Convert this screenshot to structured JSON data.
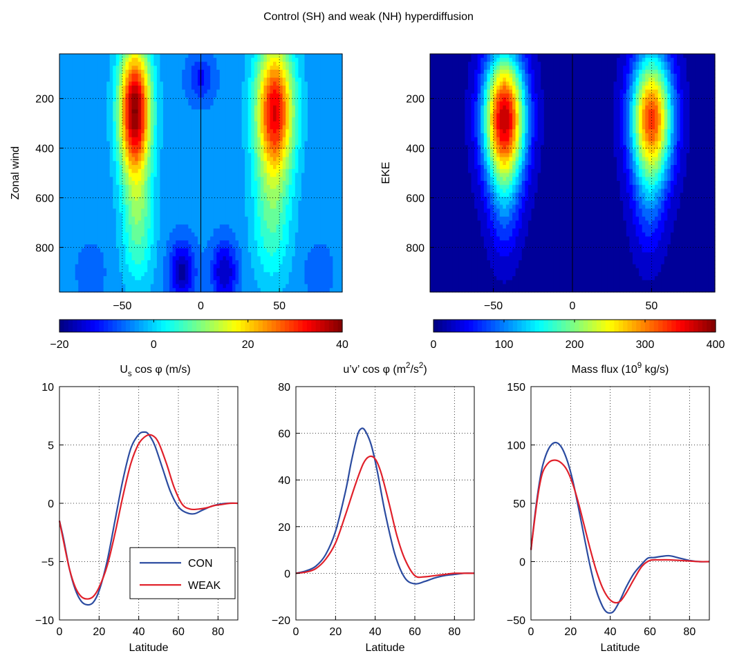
{
  "figure": {
    "title": "Control (SH) and weak (NH) hyperdiffusion"
  },
  "chart_data": [
    {
      "type": "heatmap",
      "id": "zonal-wind",
      "ylabel": "Zonal wind",
      "x_ticks": [
        -50,
        0,
        50
      ],
      "y_ticks": [
        200,
        400,
        600,
        800
      ],
      "xlim": [
        -90,
        90
      ],
      "ylim": [
        980,
        20
      ],
      "colorbar": {
        "label_parts": [
          "U",
          "s",
          " cos φ (m/s)"
        ],
        "range": [
          -20,
          40
        ],
        "ticks": [
          -20,
          0,
          20,
          40
        ]
      },
      "background_value": -4,
      "features": [
        {
          "lat": -42,
          "p": 250,
          "amp": 44,
          "slat": 10,
          "sp": 260
        },
        {
          "lat": 47,
          "p": 250,
          "amp": 38,
          "slat": 12,
          "sp": 270
        },
        {
          "lat": -40,
          "p": 700,
          "amp": 12,
          "slat": 10,
          "sp": 250
        },
        {
          "lat": 45,
          "p": 700,
          "amp": 10,
          "slat": 12,
          "sp": 250
        },
        {
          "lat": -12,
          "p": 900,
          "amp": -14,
          "slat": 8,
          "sp": 120
        },
        {
          "lat": 15,
          "p": 900,
          "amp": -13,
          "slat": 8,
          "sp": 120
        },
        {
          "lat": 0,
          "p": 120,
          "amp": -8,
          "slat": 8,
          "sp": 90
        },
        {
          "lat": -70,
          "p": 900,
          "amp": -4,
          "slat": 8,
          "sp": 100
        },
        {
          "lat": 75,
          "p": 900,
          "amp": -4,
          "slat": 8,
          "sp": 100
        }
      ]
    },
    {
      "type": "heatmap",
      "id": "eke",
      "ylabel": "EKE",
      "x_ticks": [
        -50,
        0,
        50
      ],
      "y_ticks": [
        200,
        400,
        600,
        800
      ],
      "xlim": [
        -90,
        90
      ],
      "ylim": [
        980,
        20
      ],
      "colorbar": {
        "label_parts": [
          "EKE"
        ],
        "range": [
          0,
          400
        ],
        "ticks": [
          0,
          100,
          200,
          300,
          400
        ]
      },
      "background_value": 10,
      "features": [
        {
          "lat": -43,
          "p": 280,
          "amp": 365,
          "slat": 13,
          "sp": 260
        },
        {
          "lat": 50,
          "p": 280,
          "amp": 315,
          "slat": 13,
          "sp": 260
        },
        {
          "lat": -43,
          "p": 650,
          "amp": 55,
          "slat": 10,
          "sp": 220
        },
        {
          "lat": 48,
          "p": 650,
          "amp": 50,
          "slat": 10,
          "sp": 220
        }
      ]
    },
    {
      "type": "line",
      "id": "surface-wind",
      "title_parts": [
        "U",
        "s",
        " cos φ (m/s)"
      ],
      "xlabel": "Latitude",
      "xlim": [
        0,
        90
      ],
      "ylim": [
        -10,
        10
      ],
      "x_ticks": [
        0,
        20,
        40,
        60,
        80
      ],
      "y_ticks": [
        -10,
        -5,
        0,
        5,
        10
      ],
      "legend": {
        "position": "lower-right",
        "entries": [
          "CON",
          "WEAK"
        ]
      },
      "series": [
        {
          "name": "CON",
          "color": "#2b4ba0",
          "x": [
            0,
            2,
            5,
            8,
            11,
            14,
            17,
            20,
            24,
            28,
            32,
            36,
            40,
            43,
            45,
            48,
            52,
            56,
            60,
            64,
            68,
            72,
            76,
            80,
            85,
            90
          ],
          "y": [
            -1.5,
            -3,
            -5.6,
            -7.4,
            -8.4,
            -8.7,
            -8.5,
            -7.5,
            -5,
            -1.5,
            2,
            4.7,
            5.9,
            6.1,
            5.9,
            5,
            3,
            1,
            -0.3,
            -0.8,
            -0.9,
            -0.6,
            -0.3,
            -0.1,
            0,
            0
          ]
        },
        {
          "name": "WEAK",
          "color": "#e0202a",
          "x": [
            0,
            2,
            5,
            8,
            11,
            14,
            17,
            20,
            24,
            28,
            32,
            36,
            40,
            44,
            47,
            50,
            54,
            58,
            62,
            66,
            70,
            74,
            78,
            82,
            86,
            90
          ],
          "y": [
            -1.5,
            -3.2,
            -5.6,
            -7.2,
            -8,
            -8.2,
            -8,
            -7.2,
            -5.4,
            -2.6,
            0.6,
            3.4,
            5.1,
            5.8,
            5.8,
            5.2,
            3.4,
            1.3,
            -0.1,
            -0.5,
            -0.5,
            -0.4,
            -0.2,
            -0.1,
            0,
            0
          ]
        }
      ]
    },
    {
      "type": "line",
      "id": "momentum-flux",
      "title_parts": [
        "u’v’ cos φ (m",
        "2",
        "/s",
        "2",
        ")"
      ],
      "xlabel": "Latitude",
      "xlim": [
        0,
        90
      ],
      "ylim": [
        -20,
        80
      ],
      "x_ticks": [
        0,
        20,
        40,
        60,
        80
      ],
      "y_ticks": [
        -20,
        0,
        20,
        40,
        60,
        80
      ],
      "series": [
        {
          "name": "CON",
          "color": "#2b4ba0",
          "x": [
            0,
            5,
            10,
            15,
            20,
            25,
            28,
            31,
            33,
            35,
            38,
            41,
            45,
            50,
            55,
            60,
            65,
            70,
            75,
            80,
            85,
            90
          ],
          "y": [
            0,
            1,
            3,
            8,
            18,
            35,
            48,
            59,
            62,
            61,
            55,
            44,
            26,
            8,
            -2,
            -4.5,
            -3.5,
            -2,
            -1,
            -0.5,
            0,
            0
          ]
        },
        {
          "name": "WEAK",
          "color": "#e0202a",
          "x": [
            0,
            5,
            10,
            15,
            20,
            25,
            30,
            34,
            37,
            40,
            43,
            47,
            51,
            55,
            60,
            65,
            70,
            75,
            80,
            85,
            90
          ],
          "y": [
            0,
            0.5,
            2,
            6,
            13,
            25,
            38,
            47,
            50,
            49,
            43,
            30,
            16,
            6,
            -1,
            -1.5,
            -1,
            -0.5,
            0,
            0,
            0
          ]
        }
      ]
    },
    {
      "type": "line",
      "id": "mass-flux",
      "title_parts": [
        "Mass flux (10",
        "9",
        " kg/s)"
      ],
      "xlabel": "Latitude",
      "xlim": [
        0,
        90
      ],
      "ylim": [
        -50,
        150
      ],
      "x_ticks": [
        0,
        20,
        40,
        60,
        80
      ],
      "y_ticks": [
        -50,
        0,
        50,
        100,
        150
      ],
      "series": [
        {
          "name": "CON",
          "color": "#2b4ba0",
          "x": [
            0,
            2,
            4,
            6,
            9,
            12,
            15,
            18,
            21,
            24,
            27,
            30,
            33,
            36,
            38,
            40,
            42,
            45,
            48,
            52,
            56,
            59,
            62,
            66,
            70,
            75,
            80,
            85,
            90
          ],
          "y": [
            10,
            40,
            65,
            83,
            97,
            102,
            99,
            88,
            70,
            46,
            20,
            -5,
            -25,
            -38,
            -43,
            -44,
            -42,
            -33,
            -22,
            -10,
            -2,
            3,
            3.5,
            4.5,
            5,
            3,
            1,
            0,
            0
          ]
        },
        {
          "name": "WEAK",
          "color": "#e0202a",
          "x": [
            0,
            2,
            4,
            6,
            9,
            12,
            15,
            18,
            21,
            24,
            27,
            30,
            33,
            36,
            39,
            42,
            45,
            48,
            52,
            56,
            60,
            65,
            70,
            75,
            80,
            85,
            90
          ],
          "y": [
            10,
            38,
            62,
            77,
            85,
            87,
            85,
            79,
            67,
            50,
            30,
            10,
            -8,
            -22,
            -31,
            -35,
            -34,
            -27,
            -15,
            -4,
            1,
            1.5,
            1.5,
            1,
            0.5,
            0,
            0
          ]
        }
      ]
    }
  ]
}
